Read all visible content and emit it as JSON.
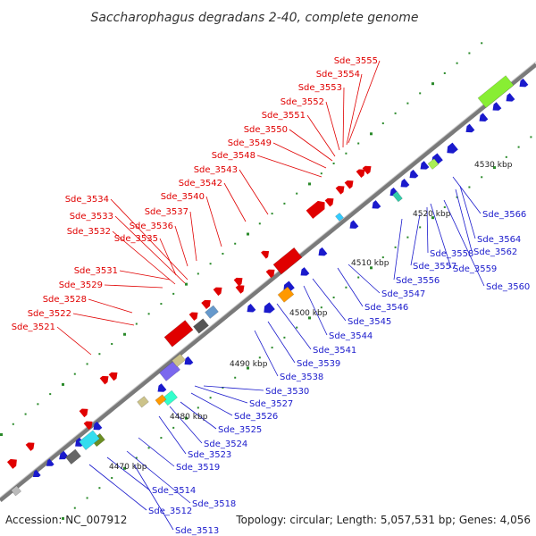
{
  "title": "Saccharophagus degradans 2-40, complete genome",
  "footer": {
    "accession": "Accession: NC_007912",
    "summary": "Topology: circular; Length: 5,057,531 bp; Genes: 4,056"
  },
  "colors": {
    "forward": "#e00000",
    "reverse": "#1a1acc",
    "backbone": "#888888",
    "tick": "#2a8a2a"
  },
  "scale_labels": [
    "4470 kbp",
    "4480 kbp",
    "4490 kbp",
    "4500 kbp",
    "4510 kbp",
    "4520 kbp",
    "4530 kbp"
  ],
  "labels_top": [
    "Sde_3521",
    "Sde_3522",
    "Sde_3528",
    "Sde_3529",
    "Sde_3531",
    "Sde_3532",
    "Sde_3533",
    "Sde_3534",
    "Sde_3535",
    "Sde_3536",
    "Sde_3537",
    "Sde_3540",
    "Sde_3542",
    "Sde_3543",
    "Sde_3548",
    "Sde_3549",
    "Sde_3550",
    "Sde_3551",
    "Sde_3552",
    "Sde_3553",
    "Sde_3554",
    "Sde_3555"
  ],
  "labels_bottom": [
    "Sde_3513",
    "Sde_3512",
    "Sde_3518",
    "Sde_3514",
    "Sde_3519",
    "Sde_3523",
    "Sde_3524",
    "Sde_3525",
    "Sde_3526",
    "Sde_3527",
    "Sde_3530",
    "Sde_3538",
    "Sde_3539",
    "Sde_3541",
    "Sde_3544",
    "Sde_3545",
    "Sde_3546",
    "Sde_3547",
    "Sde_3556",
    "Sde_3557",
    "Sde_3558",
    "Sde_3559",
    "Sde_3560",
    "Sde_3562",
    "Sde_3564",
    "Sde_3566"
  ]
}
